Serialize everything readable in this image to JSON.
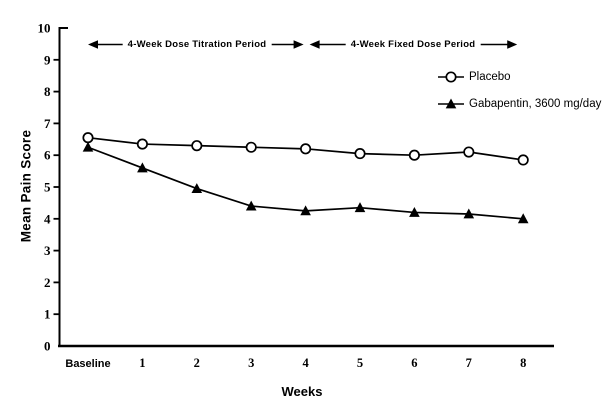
{
  "colors": {
    "ink": "#000000",
    "background": "#ffffff",
    "marker_fill_open": "#ffffff"
  },
  "chart_data": {
    "type": "line",
    "title": "",
    "xlabel": "Weeks",
    "ylabel": "Mean Pain Score",
    "categories": [
      "Baseline",
      "1",
      "2",
      "3",
      "4",
      "5",
      "6",
      "7",
      "8"
    ],
    "series": [
      {
        "name": "Placebo",
        "marker": "open-circle",
        "color": "#000000",
        "values": [
          6.55,
          6.35,
          6.3,
          6.25,
          6.2,
          6.05,
          6.0,
          6.1,
          5.85
        ]
      },
      {
        "name": "Gabapentin, 3600 mg/day",
        "marker": "filled-triangle",
        "color": "#000000",
        "values": [
          6.25,
          5.6,
          4.95,
          4.4,
          4.25,
          4.35,
          4.2,
          4.15,
          4.0
        ]
      }
    ],
    "ylim": [
      0,
      10
    ],
    "ytick_step": 1,
    "grid": false,
    "legend_position": "inside-upper-right",
    "annotations": [
      {
        "label": "4-Week Dose Titration Period",
        "span": [
          0,
          4
        ],
        "style": "double-headed-arrow"
      },
      {
        "label": "4-Week Fixed Dose Period",
        "span": [
          4,
          8
        ],
        "style": "double-headed-arrow"
      }
    ]
  }
}
